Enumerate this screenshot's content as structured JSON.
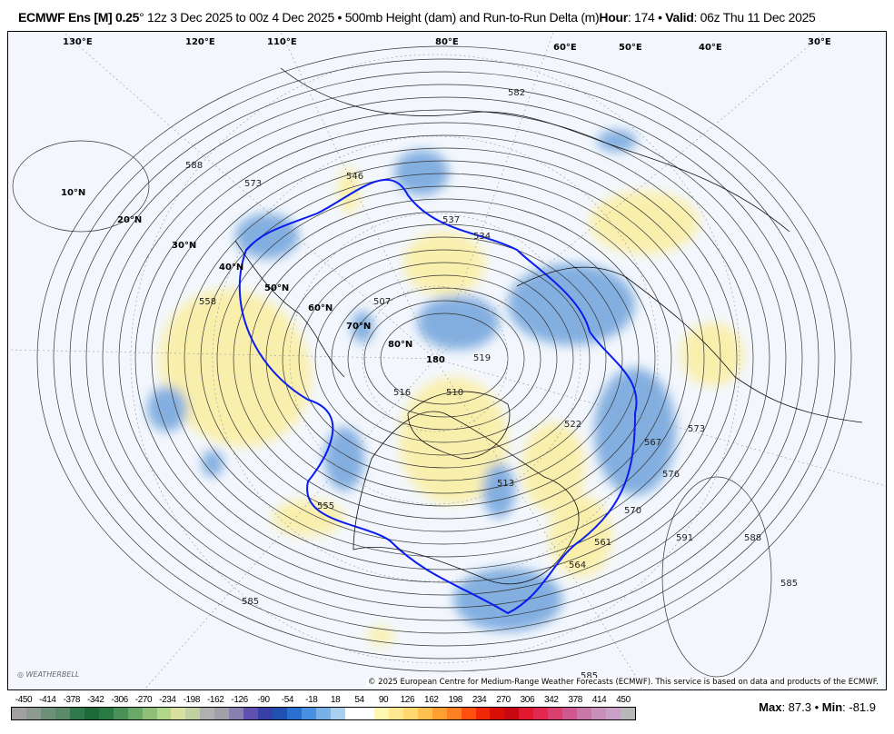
{
  "title": {
    "model": "ECMWF Ens [M] 0.25",
    "degree": "°",
    "run": " 12z 3 Dec 2025 to 00z 4 Dec 2025 • 500mb Height (dam) and Run-to-Run Delta (m)",
    "hour_label": "Hour",
    "hour_value": ": 174 • ",
    "valid_label": "Valid",
    "valid_value": ": 06z Thu 11 Dec 2025"
  },
  "map": {
    "latitude_labels": [
      "10°N",
      "20°N",
      "30°N",
      "40°N",
      "50°N",
      "60°N",
      "70°N",
      "80°N"
    ],
    "longitude_labels": [
      "130°E",
      "120°E",
      "110°E",
      "80°E",
      "60°E",
      "50°E",
      "40°E",
      "30°E",
      "180"
    ],
    "contour_labels": [
      "588",
      "573",
      "546",
      "537",
      "534",
      "507",
      "558",
      "522",
      "516",
      "510",
      "519",
      "513",
      "555",
      "570",
      "576",
      "567",
      "573",
      "585",
      "591",
      "588",
      "585",
      "564",
      "561",
      "585",
      "582"
    ],
    "highlight_contour": "564 dam",
    "colors": {
      "background": "#f3f7fd",
      "positive": "#fbeea0",
      "negative": "#6fa3dc",
      "highlight": "#0a1cf0"
    },
    "copyright": "© 2025 European Centre for Medium-Range Weather Forecasts (ECMWF). This service is based on data and products of the ECMWF.",
    "logo": "WEATHERBELL"
  },
  "colorbar": {
    "labels": [
      "-450",
      "-414",
      "-378",
      "-342",
      "-306",
      "-270",
      "-234",
      "-198",
      "-162",
      "-126",
      "-90",
      "-54",
      "-18",
      "18",
      "54",
      "90",
      "126",
      "162",
      "198",
      "234",
      "270",
      "306",
      "342",
      "378",
      "414",
      "450"
    ],
    "colors": [
      "#a0a0a0",
      "#8c9a90",
      "#6e9078",
      "#5a8a6a",
      "#2e7a4a",
      "#1e6a3a",
      "#2a7a44",
      "#4a9058",
      "#6aa868",
      "#90c078",
      "#b0d888",
      "#d8e0a0",
      "#c0d0a0",
      "#b0b0b0",
      "#a0a0a8",
      "#8a80b0",
      "#6050b0",
      "#3840a8",
      "#2050b0",
      "#2a70d0",
      "#4a90e0",
      "#7ab0e8",
      "#a8cef0",
      "#ffffff",
      "#ffffff",
      "#fff8b0",
      "#ffe890",
      "#ffd870",
      "#ffc050",
      "#ffa030",
      "#ff8020",
      "#ff5010",
      "#f02808",
      "#d81008",
      "#c80810",
      "#e01830",
      "#e02850",
      "#d84070",
      "#d05890",
      "#c878a8",
      "#c890b8",
      "#c8a0c8",
      "#b8b8b8"
    ]
  },
  "stats": {
    "max_label": "Max",
    "max_value": ": 87.3 • ",
    "min_label": "Min",
    "min_value": ": -81.9"
  }
}
